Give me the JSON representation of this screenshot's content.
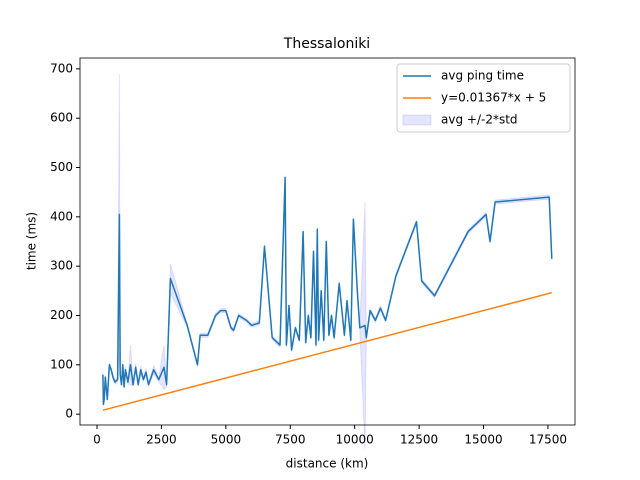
{
  "chart_data": {
    "type": "line",
    "title": "Thessaloniki",
    "x_label": "distance (km)",
    "y_label": "time (ms)",
    "xlim": [
      -660,
      18550
    ],
    "ylim": [
      -22,
      722
    ],
    "xticks": [
      0,
      2500,
      5000,
      7500,
      10000,
      12500,
      15000,
      17500
    ],
    "yticks": [
      0,
      100,
      200,
      300,
      400,
      500,
      600,
      700
    ],
    "legend": "upper right",
    "series": [
      {
        "name": "avg ping time",
        "color": "#1f77b4",
        "x": [
          230,
          250,
          280,
          320,
          400,
          480,
          550,
          620,
          700,
          800,
          870,
          900,
          950,
          1000,
          1050,
          1100,
          1200,
          1300,
          1400,
          1500,
          1600,
          1700,
          1800,
          1900,
          2000,
          2200,
          2400,
          2600,
          2700,
          2850,
          3500,
          3900,
          4000,
          4300,
          4600,
          4800,
          5000,
          5200,
          5300,
          5500,
          5800,
          6000,
          6300,
          6500,
          6800,
          7100,
          7300,
          7350,
          7450,
          7550,
          7700,
          7850,
          8000,
          8100,
          8200,
          8300,
          8400,
          8500,
          8550,
          8600,
          8700,
          8800,
          8900,
          9000,
          9100,
          9200,
          9400,
          9600,
          9700,
          9850,
          9950,
          10100,
          10200,
          10400,
          10450,
          10600,
          10800,
          11000,
          11200,
          11600,
          12400,
          12600,
          13100,
          14400,
          15100,
          15250,
          15450,
          17550,
          17650
        ],
        "values": [
          80,
          20,
          30,
          75,
          30,
          100,
          90,
          75,
          65,
          70,
          405,
          80,
          60,
          100,
          55,
          90,
          65,
          100,
          60,
          95,
          60,
          90,
          70,
          85,
          60,
          90,
          70,
          95,
          60,
          275,
          180,
          100,
          160,
          160,
          200,
          210,
          210,
          175,
          170,
          200,
          190,
          180,
          185,
          340,
          155,
          140,
          480,
          140,
          220,
          130,
          175,
          150,
          370,
          145,
          200,
          155,
          330,
          140,
          375,
          150,
          250,
          150,
          350,
          160,
          200,
          155,
          265,
          160,
          230,
          150,
          395,
          250,
          175,
          180,
          155,
          210,
          190,
          215,
          190,
          280,
          390,
          270,
          240,
          370,
          405,
          350,
          430,
          440,
          315
        ]
      },
      {
        "name": "y=0.01367*x + 5",
        "color": "#ff7f0e",
        "x": [
          230,
          17650
        ],
        "values": [
          8.1,
          246.3
        ]
      },
      {
        "name": "avg +/-2*std",
        "color": "#0000ff",
        "values": [
          4,
          4,
          4,
          4,
          4,
          4,
          4,
          4,
          4,
          4,
          285,
          4,
          4,
          8,
          4,
          8,
          4,
          40,
          4,
          8,
          4,
          8,
          4,
          8,
          4,
          8,
          4,
          45,
          4,
          30,
          4,
          4,
          4,
          4,
          4,
          4,
          4,
          4,
          4,
          4,
          4,
          4,
          4,
          4,
          4,
          4,
          4,
          4,
          4,
          4,
          4,
          4,
          4,
          4,
          4,
          4,
          4,
          4,
          4,
          4,
          4,
          4,
          4,
          4,
          4,
          4,
          4,
          4,
          4,
          4,
          4,
          4,
          4,
          250,
          4,
          4,
          4,
          4,
          4,
          4,
          4,
          4,
          4,
          4,
          4,
          4,
          4,
          4,
          4
        ]
      }
    ]
  }
}
